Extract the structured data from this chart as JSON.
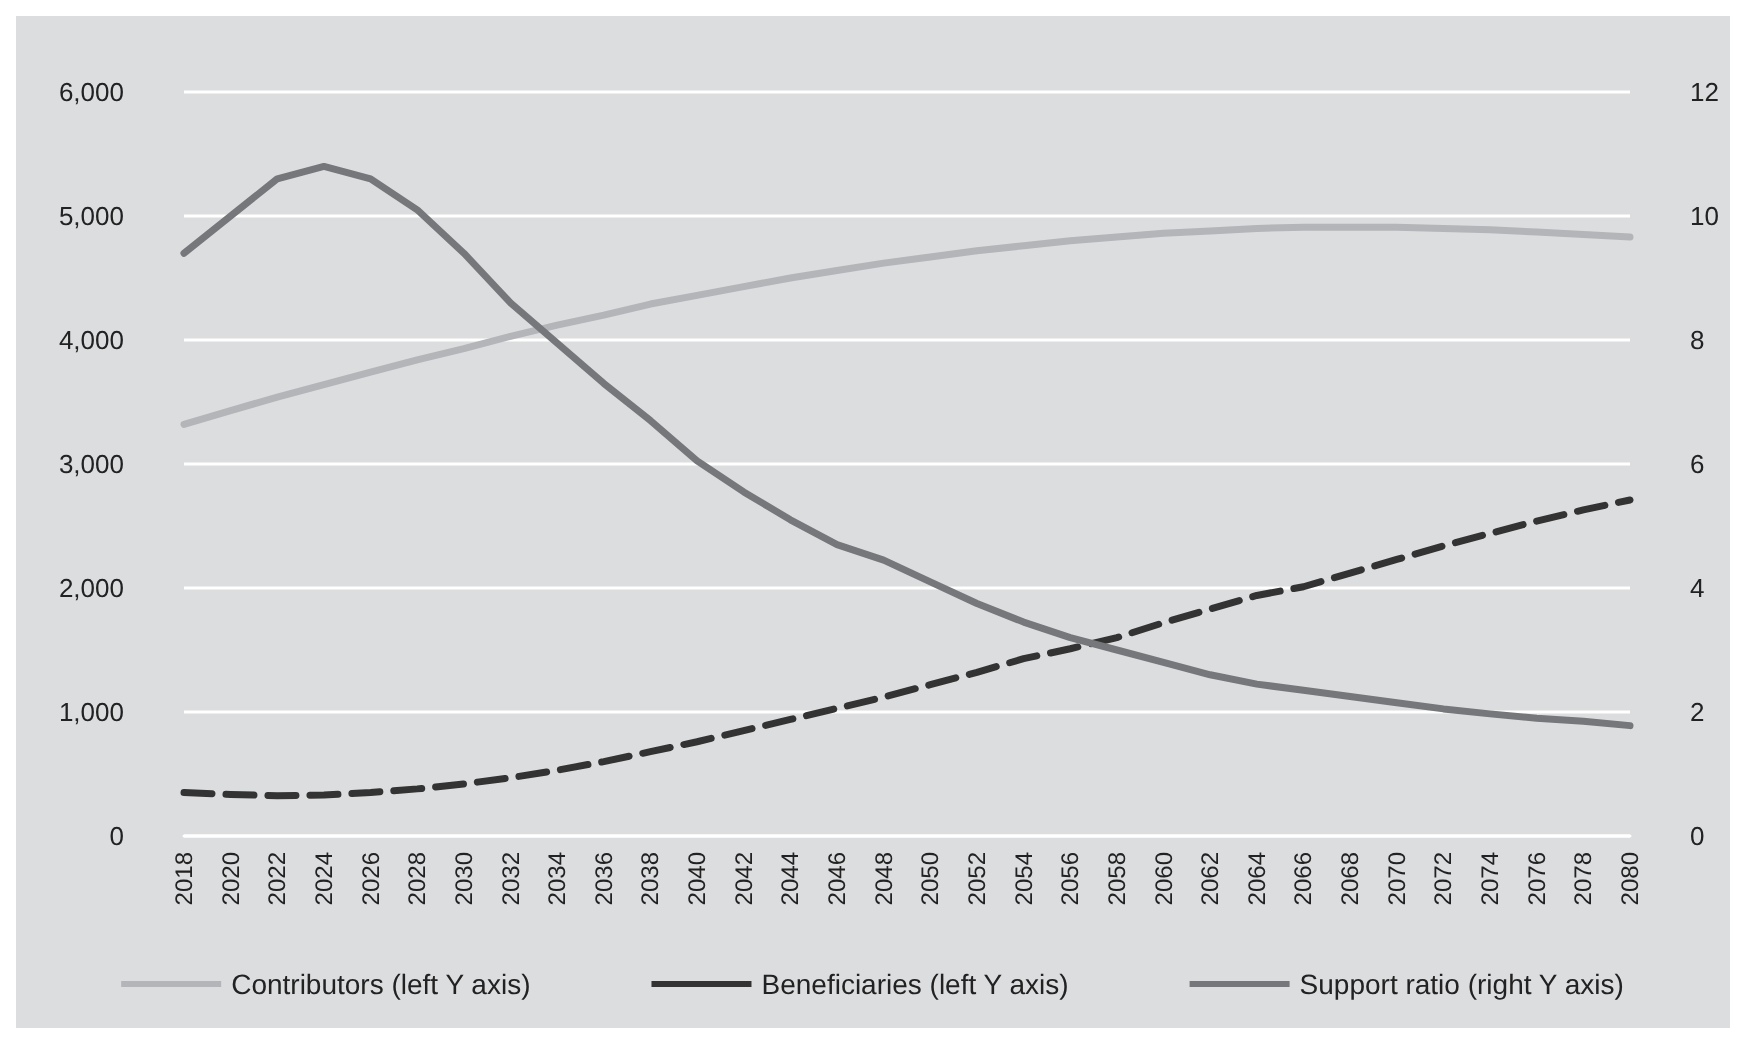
{
  "chart_data": {
    "type": "line",
    "categories": [
      "2018",
      "2020",
      "2022",
      "2024",
      "2026",
      "2028",
      "2030",
      "2032",
      "2034",
      "2036",
      "2038",
      "2040",
      "2042",
      "2044",
      "2046",
      "2048",
      "2050",
      "2052",
      "2054",
      "2056",
      "2058",
      "2060",
      "2062",
      "2064",
      "2066",
      "2068",
      "2070",
      "2072",
      "2074",
      "2076",
      "2078",
      "2080"
    ],
    "series": [
      {
        "name": "Contributors (left Y axis)",
        "color": "#b4b5b8",
        "line_style": "solid",
        "values": [
          3320,
          3430,
          3540,
          3640,
          3740,
          3840,
          3930,
          4030,
          4120,
          4200,
          4290,
          4360,
          4430,
          4500,
          4560,
          4620,
          4670,
          4720,
          4760,
          4800,
          4830,
          4860,
          4880,
          4900,
          4910,
          4910,
          4910,
          4900,
          4890,
          4870,
          4850,
          4830
        ]
      },
      {
        "name": "Beneficiaries (left Y axis)",
        "color": "#333333",
        "line_style": "dashed",
        "values": [
          350,
          335,
          325,
          330,
          350,
          380,
          420,
          470,
          530,
          600,
          680,
          760,
          850,
          940,
          1030,
          1120,
          1220,
          1320,
          1430,
          1510,
          1600,
          1720,
          1830,
          1940,
          2010,
          2120,
          2230,
          2340,
          2440,
          2540,
          2630,
          2710
        ]
      },
      {
        "name": "Support ratio (right Y axis)",
        "color": "#76777a",
        "line_style": "solid",
        "axis": "y2",
        "values": [
          9.4,
          10.0,
          10.6,
          10.8,
          10.6,
          10.1,
          9.4,
          8.6,
          7.95,
          7.3,
          6.7,
          6.05,
          5.55,
          5.1,
          4.7,
          4.45,
          4.1,
          3.75,
          3.45,
          3.2,
          3.0,
          2.8,
          2.6,
          2.45,
          2.35,
          2.25,
          2.15,
          2.05,
          1.97,
          1.9,
          1.85,
          1.78
        ]
      }
    ],
    "ylim": [
      0,
      6000
    ],
    "yticks": [
      {
        "value": 0,
        "label": "0"
      },
      {
        "value": 1000,
        "label": "1,000"
      },
      {
        "value": 2000,
        "label": "2,000"
      },
      {
        "value": 3000,
        "label": "3,000"
      },
      {
        "value": 4000,
        "label": "4,000"
      },
      {
        "value": 5000,
        "label": "5,000"
      },
      {
        "value": 6000,
        "label": "6,000"
      }
    ],
    "y2lim": [
      0,
      12
    ],
    "y2ticks": [
      0,
      2,
      4,
      6,
      8,
      10,
      12
    ],
    "grid": "y",
    "legend": "bottom",
    "marker": "none"
  }
}
